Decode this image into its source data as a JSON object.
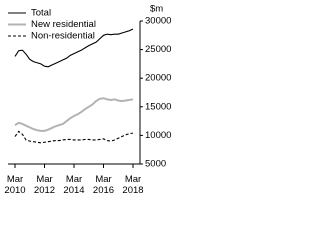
{
  "chart_data": {
    "type": "line",
    "y_axis_label": "$m",
    "categories": [
      "Mar 2010",
      null,
      null,
      null,
      null,
      null,
      null,
      null,
      "Mar 2012",
      null,
      null,
      null,
      null,
      null,
      null,
      null,
      "Mar 2014",
      null,
      null,
      null,
      null,
      null,
      null,
      null,
      "Mar 2016",
      null,
      null,
      null,
      null,
      null,
      null,
      null,
      "Mar 2018"
    ],
    "series": [
      {
        "name": "Total",
        "color": "#000000",
        "style": "solid",
        "values": [
          23800,
          24800,
          24900,
          24200,
          23300,
          22900,
          22700,
          22500,
          22100,
          22000,
          22300,
          22600,
          22900,
          23200,
          23500,
          24000,
          24300,
          24600,
          24900,
          25300,
          25700,
          26000,
          26300,
          26900,
          27500,
          27700,
          27600,
          27700,
          27700,
          27900,
          28100,
          28300,
          28600
        ]
      },
      {
        "name": "New residential",
        "color": "#b3b3b3",
        "style": "solid",
        "values": [
          11800,
          12200,
          12000,
          11700,
          11400,
          11100,
          10900,
          10800,
          10800,
          11000,
          11300,
          11600,
          11800,
          12000,
          12500,
          13000,
          13400,
          13700,
          14100,
          14600,
          15000,
          15400,
          16000,
          16400,
          16500,
          16300,
          16200,
          16300,
          16100,
          16000,
          16100,
          16200,
          16300
        ]
      },
      {
        "name": "Non-residential",
        "color": "#000000",
        "style": "dashed",
        "values": [
          9800,
          10700,
          10200,
          9200,
          9000,
          8900,
          8800,
          8700,
          8800,
          8900,
          9000,
          9100,
          9100,
          9200,
          9300,
          9300,
          9200,
          9200,
          9200,
          9300,
          9300,
          9200,
          9200,
          9300,
          9400,
          9100,
          9000,
          9200,
          9500,
          9800,
          10100,
          10300,
          10400
        ]
      }
    ],
    "ylim": [
      5000,
      30000
    ],
    "yticks": [
      5000,
      10000,
      15000,
      20000,
      25000,
      30000
    ],
    "y_axis_side": "right",
    "legend": "top-left"
  }
}
